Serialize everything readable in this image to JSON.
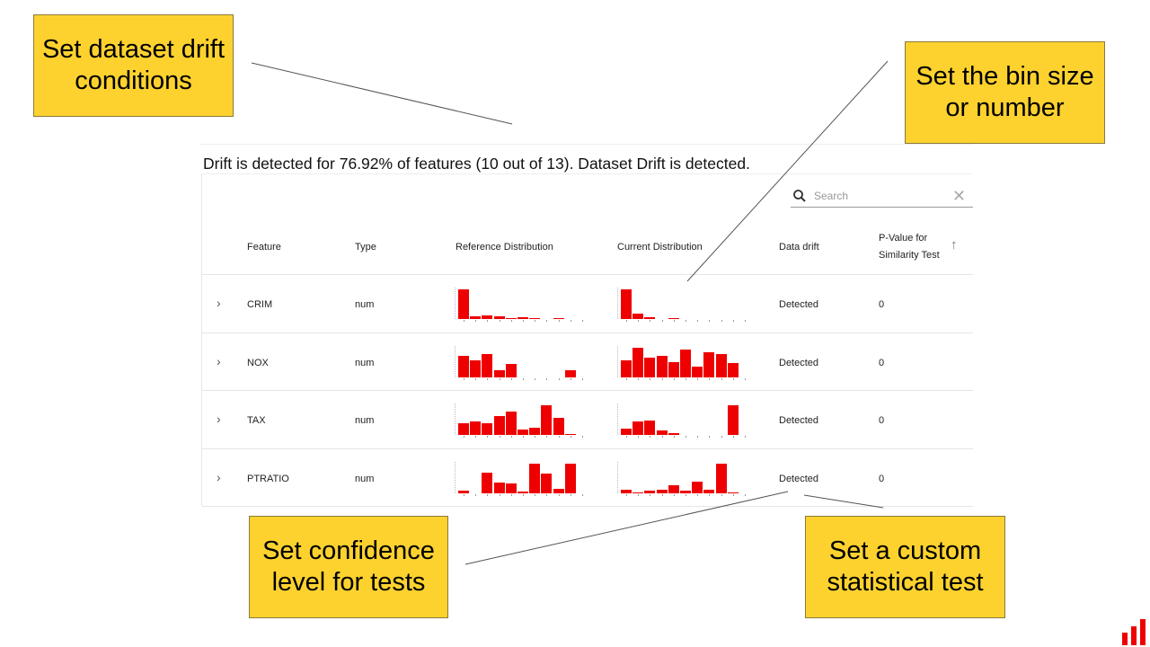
{
  "callouts": {
    "dataset_drift": "Set dataset drift conditions",
    "bin_size": "Set the bin size or number",
    "confidence": "Set confidence level for tests",
    "custom_test": "Set a custom statistical test"
  },
  "summary": "Drift is detected for 76.92% of features (10 out of 13). Dataset Drift is detected.",
  "search": {
    "placeholder": "Search"
  },
  "columns": {
    "feature": "Feature",
    "type": "Type",
    "reference": "Reference Distribution",
    "current": "Current Distribution",
    "drift": "Data drift",
    "pvalue_line1": "P-Value for",
    "pvalue_line2": "Similarity Test"
  },
  "accent": "#ee0000",
  "rows": [
    {
      "feature": "CRIM",
      "type": "num",
      "drift": "Detected",
      "pvalue": "0",
      "ref": [
        100,
        8,
        11,
        8,
        2,
        5,
        2,
        0,
        2,
        0
      ],
      "cur": [
        100,
        17,
        5,
        0,
        2,
        0,
        0,
        0,
        0,
        0
      ]
    },
    {
      "feature": "NOX",
      "type": "num",
      "drift": "Detected",
      "pvalue": "0",
      "ref": [
        72,
        55,
        78,
        24,
        43,
        0,
        0,
        0,
        0,
        24
      ],
      "cur": [
        57,
        100,
        66,
        70,
        50,
        93,
        34,
        82,
        78,
        48
      ]
    },
    {
      "feature": "TAX",
      "type": "num",
      "drift": "Detected",
      "pvalue": "0",
      "ref": [
        38,
        45,
        39,
        65,
        80,
        18,
        25,
        100,
        58,
        2
      ],
      "cur": [
        20,
        45,
        48,
        15,
        5,
        0,
        0,
        0,
        0,
        100
      ]
    },
    {
      "feature": "PTRATIO",
      "type": "num",
      "drift": "Detected",
      "pvalue": "0",
      "ref": [
        8,
        0,
        68,
        36,
        31,
        5,
        100,
        65,
        13,
        100
      ],
      "cur": [
        10,
        3,
        7,
        12,
        27,
        8,
        39,
        12,
        100,
        3
      ]
    }
  ]
}
